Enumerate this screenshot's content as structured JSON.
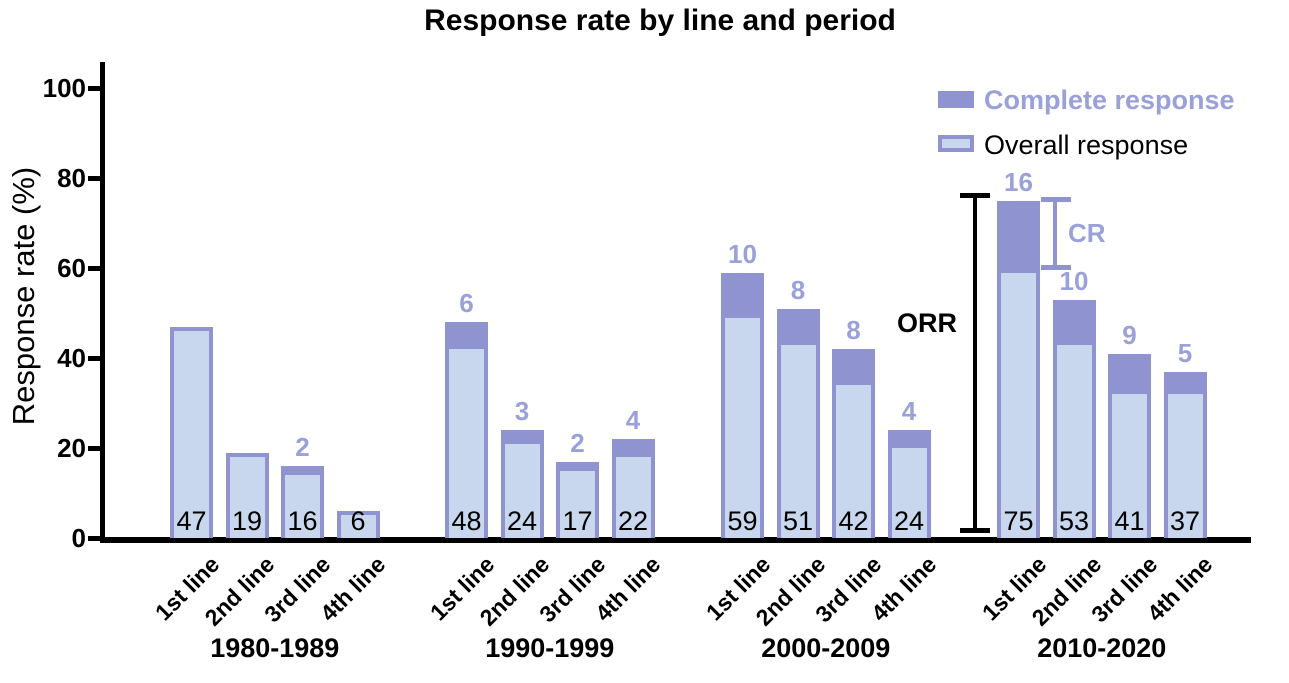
{
  "chart_data": {
    "type": "bar",
    "title": "Response rate by line and period",
    "xlabel": "",
    "ylabel": "Response rate (%)",
    "ylim": [
      0,
      100
    ],
    "yticks": [
      0,
      20,
      40,
      60,
      80,
      100
    ],
    "grid": false,
    "legend_position": "top-right",
    "stacking_note": "Total bar height = overall response rate (%); dark top segment = complete response (%); black number at bar base = overall response value; purple number above bar = complete response value",
    "categories": [
      "1st line",
      "2nd line",
      "3rd line",
      "4th line"
    ],
    "groups": [
      {
        "period": "1980-1989",
        "overall_response": [
          47,
          19,
          16,
          6
        ],
        "complete_response": [
          0,
          0,
          2,
          0
        ]
      },
      {
        "period": "1990-1999",
        "overall_response": [
          48,
          24,
          17,
          22
        ],
        "complete_response": [
          6,
          3,
          2,
          4
        ]
      },
      {
        "period": "2000-2009",
        "overall_response": [
          59,
          51,
          42,
          24
        ],
        "complete_response": [
          10,
          8,
          8,
          4
        ]
      },
      {
        "period": "2010-2020",
        "overall_response": [
          75,
          53,
          41,
          37
        ],
        "complete_response": [
          16,
          10,
          9,
          5
        ]
      }
    ],
    "legend": [
      {
        "label": "Complete response",
        "swatch": "solid-purple"
      },
      {
        "label": "Overall response",
        "swatch": "light-blue-outlined"
      }
    ],
    "annotations": [
      {
        "label": "ORR",
        "type": "bracket",
        "color": "black",
        "target": "2010-2020 1st line full bar",
        "from": 0,
        "to": 75
      },
      {
        "label": "CR",
        "type": "bracket",
        "color": "purple",
        "target": "2010-2020 1st line CR segment",
        "from": 59,
        "to": 75
      }
    ],
    "colors": {
      "complete_response": "#8f94d0",
      "overall_response": "#c9d7ee",
      "purple_text": "#9aa1d8",
      "axis": "#000000"
    }
  }
}
